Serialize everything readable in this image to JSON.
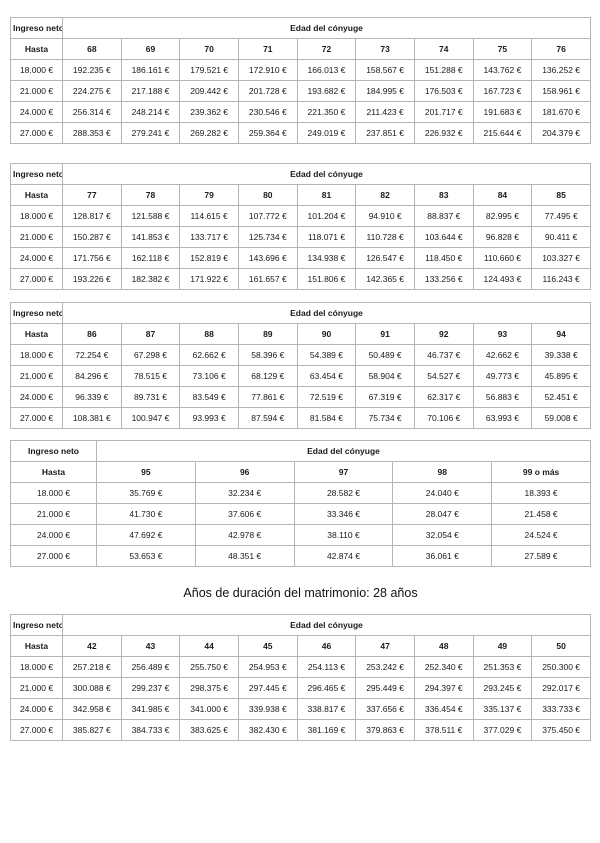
{
  "page": {
    "heading": "Años de duración del matrimonio: 28 años"
  },
  "labels": {
    "income_header": "Ingreso neto",
    "age_header": "Edad del cónyuge",
    "row_header": "Hasta"
  },
  "tables": [
    {
      "income_header": "Ingreso neto",
      "age_header": "Edad del cónyuge",
      "row_header": "Hasta",
      "ages": [
        "68",
        "69",
        "70",
        "71",
        "72",
        "73",
        "74",
        "75",
        "76"
      ],
      "rows": [
        {
          "income": "18.000 €",
          "values": [
            "192.235 €",
            "186.161 €",
            "179.521 €",
            "172.910 €",
            "166.013 €",
            "158.567 €",
            "151.288 €",
            "143.762 €",
            "136.252 €"
          ]
        },
        {
          "income": "21.000 €",
          "values": [
            "224.275 €",
            "217.188 €",
            "209.442 €",
            "201.728 €",
            "193.682 €",
            "184.995 €",
            "176.503 €",
            "167.723 €",
            "158.961 €"
          ]
        },
        {
          "income": "24.000 €",
          "values": [
            "256.314 €",
            "248.214 €",
            "239.362 €",
            "230.546 €",
            "221.350 €",
            "211.423 €",
            "201.717 €",
            "191.683 €",
            "181.670 €"
          ]
        },
        {
          "income": "27.000 €",
          "values": [
            "288.353 €",
            "279.241 €",
            "269.282 €",
            "259.364 €",
            "249.019 €",
            "237.851 €",
            "226.932 €",
            "215.644 €",
            "204.379 €"
          ]
        }
      ]
    },
    {
      "income_header": "Ingreso neto",
      "age_header": "Edad del cónyuge",
      "row_header": "Hasta",
      "ages": [
        "77",
        "78",
        "79",
        "80",
        "81",
        "82",
        "83",
        "84",
        "85"
      ],
      "rows": [
        {
          "income": "18.000 €",
          "values": [
            "128.817 €",
            "121.588 €",
            "114.615 €",
            "107.772 €",
            "101.204 €",
            "94.910 €",
            "88.837 €",
            "82.995 €",
            "77.495 €"
          ]
        },
        {
          "income": "21.000 €",
          "values": [
            "150.287 €",
            "141.853 €",
            "133.717 €",
            "125.734 €",
            "118.071 €",
            "110.728 €",
            "103.644 €",
            "96.828 €",
            "90.411 €"
          ]
        },
        {
          "income": "24.000 €",
          "values": [
            "171.756 €",
            "162.118 €",
            "152.819 €",
            "143.696 €",
            "134.938 €",
            "126.547 €",
            "118.450 €",
            "110.660 €",
            "103.327 €"
          ]
        },
        {
          "income": "27.000 €",
          "values": [
            "193.226 €",
            "182.382 €",
            "171.922 €",
            "161.657 €",
            "151.806 €",
            "142.365 €",
            "133.256 €",
            "124.493 €",
            "116.243 €"
          ]
        }
      ]
    },
    {
      "income_header": "Ingreso neto",
      "age_header": "Edad del cónyuge",
      "row_header": "Hasta",
      "ages": [
        "86",
        "87",
        "88",
        "89",
        "90",
        "91",
        "92",
        "93",
        "94"
      ],
      "rows": [
        {
          "income": "18.000 €",
          "values": [
            "72.254 €",
            "67.298 €",
            "62.662 €",
            "58.396 €",
            "54.389 €",
            "50.489 €",
            "46.737 €",
            "42.662 €",
            "39.338 €"
          ]
        },
        {
          "income": "21.000 €",
          "values": [
            "84.296 €",
            "78.515 €",
            "73.106 €",
            "68.129 €",
            "63.454 €",
            "58.904 €",
            "54.527 €",
            "49.773 €",
            "45.895 €"
          ]
        },
        {
          "income": "24.000 €",
          "values": [
            "96.339 €",
            "89.731 €",
            "83.549 €",
            "77.861 €",
            "72.519 €",
            "67.319 €",
            "62.317 €",
            "56.883 €",
            "52.451 €"
          ]
        },
        {
          "income": "27.000 €",
          "values": [
            "108.381 €",
            "100.947 €",
            "93.993 €",
            "87.594 €",
            "81.584 €",
            "75.734 €",
            "70.106 €",
            "63.993 €",
            "59.008 €"
          ]
        }
      ]
    },
    {
      "income_header": "Ingreso neto",
      "age_header": "Edad del cónyuge",
      "row_header": "Hasta",
      "ages": [
        "95",
        "96",
        "97",
        "98",
        "99 o más"
      ],
      "rows": [
        {
          "income": "18.000 €",
          "values": [
            "35.769 €",
            "32.234 €",
            "28.582 €",
            "24.040 €",
            "18.393 €"
          ]
        },
        {
          "income": "21.000 €",
          "values": [
            "41.730 €",
            "37.606 €",
            "33.346 €",
            "28.047 €",
            "21.458 €"
          ]
        },
        {
          "income": "24.000 €",
          "values": [
            "47.692 €",
            "42.978 €",
            "38.110 €",
            "32.054 €",
            "24.524 €"
          ]
        },
        {
          "income": "27.000 €",
          "values": [
            "53.653 €",
            "48.351 €",
            "42.874 €",
            "36.061 €",
            "27.589 €"
          ]
        }
      ]
    },
    {
      "income_header": "Ingreso neto",
      "age_header": "Edad del cónyuge",
      "row_header": "Hasta",
      "ages": [
        "42",
        "43",
        "44",
        "45",
        "46",
        "47",
        "48",
        "49",
        "50"
      ],
      "rows": [
        {
          "income": "18.000 €",
          "values": [
            "257.218 €",
            "256.489 €",
            "255.750 €",
            "254.953 €",
            "254.113 €",
            "253.242 €",
            "252.340 €",
            "251.353 €",
            "250.300 €"
          ]
        },
        {
          "income": "21.000 €",
          "values": [
            "300.088 €",
            "299.237 €",
            "298.375 €",
            "297.445 €",
            "296.465 €",
            "295.449 €",
            "294.397 €",
            "293.245 €",
            "292.017 €"
          ]
        },
        {
          "income": "24.000 €",
          "values": [
            "342.958 €",
            "341.985 €",
            "341.000 €",
            "339.938 €",
            "338.817 €",
            "337.656 €",
            "336.454 €",
            "335.137 €",
            "333.733 €"
          ]
        },
        {
          "income": "27.000 €",
          "values": [
            "385.827 €",
            "384.733 €",
            "383.625 €",
            "382.430 €",
            "381.169 €",
            "379.863 €",
            "378.511 €",
            "377.029 €",
            "375.450 €"
          ]
        }
      ]
    }
  ]
}
